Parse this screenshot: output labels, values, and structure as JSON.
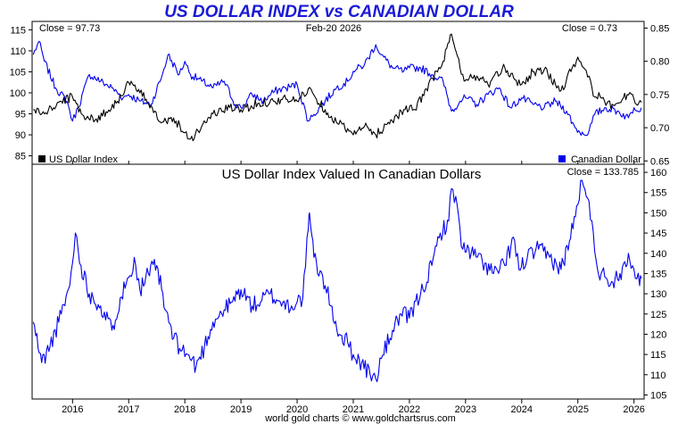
{
  "chart_data": [
    {
      "type": "line",
      "title": "US DOLLAR INDEX vs CANADIAN DOLLAR",
      "date_label": "Feb-20  2026",
      "legend": "bottom",
      "grid": false,
      "x_ticks": [
        "2016",
        "2017",
        "2018",
        "2019",
        "2020",
        "2021",
        "2022",
        "2023",
        "2024",
        "2025",
        "2026"
      ],
      "y_left_ticks": [
        85,
        90,
        95,
        100,
        105,
        110,
        115
      ],
      "y_left_lim": [
        83,
        117
      ],
      "y_right_ticks": [
        0.65,
        0.7,
        0.75,
        0.8,
        0.85
      ],
      "y_right_lim": [
        0.645,
        0.86
      ],
      "close_left": "Close = 97.73",
      "close_right": "Close = 0.73",
      "series": [
        {
          "name": "US Dollar Index",
          "color": "#000000",
          "axis": "left",
          "points": [
            [
              2015.3,
              96
            ],
            [
              2015.5,
              95
            ],
            [
              2015.8,
              98
            ],
            [
              2016.0,
              99
            ],
            [
              2016.2,
              94.5
            ],
            [
              2016.4,
              93.5
            ],
            [
              2016.6,
              95.5
            ],
            [
              2016.8,
              98
            ],
            [
              2017.0,
              102.5
            ],
            [
              2017.2,
              100
            ],
            [
              2017.4,
              97
            ],
            [
              2017.6,
              93
            ],
            [
              2017.8,
              94
            ],
            [
              2018.0,
              90.5
            ],
            [
              2018.1,
              89
            ],
            [
              2018.3,
              92
            ],
            [
              2018.5,
              95
            ],
            [
              2018.8,
              96.5
            ],
            [
              2019.0,
              96
            ],
            [
              2019.3,
              97.5
            ],
            [
              2019.6,
              98
            ],
            [
              2019.8,
              98.5
            ],
            [
              2020.0,
              98
            ],
            [
              2020.2,
              101
            ],
            [
              2020.3,
              99.5
            ],
            [
              2020.5,
              96
            ],
            [
              2020.7,
              93
            ],
            [
              2020.9,
              91.5
            ],
            [
              2021.0,
              90
            ],
            [
              2021.2,
              92
            ],
            [
              2021.4,
              90
            ],
            [
              2021.6,
              92.5
            ],
            [
              2021.9,
              96
            ],
            [
              2022.1,
              96
            ],
            [
              2022.3,
              101
            ],
            [
              2022.5,
              105
            ],
            [
              2022.6,
              107.5
            ],
            [
              2022.75,
              114
            ],
            [
              2022.9,
              106
            ],
            [
              2023.0,
              103
            ],
            [
              2023.2,
              104
            ],
            [
              2023.4,
              102
            ],
            [
              2023.7,
              106
            ],
            [
              2023.9,
              103
            ],
            [
              2024.0,
              102
            ],
            [
              2024.2,
              105
            ],
            [
              2024.4,
              105.5
            ],
            [
              2024.6,
              102
            ],
            [
              2024.7,
              100.5
            ],
            [
              2024.9,
              106
            ],
            [
              2025.0,
              108.5
            ],
            [
              2025.1,
              106
            ],
            [
              2025.2,
              104
            ],
            [
              2025.3,
              99
            ],
            [
              2025.4,
              99
            ],
            [
              2025.5,
              97
            ],
            [
              2025.7,
              97.5
            ],
            [
              2025.9,
              99.5
            ],
            [
              2026.0,
              98.5
            ],
            [
              2026.13,
              97.73
            ]
          ]
        },
        {
          "name": "Canadian Dollar",
          "color": "#0000ee",
          "axis": "right",
          "points": [
            [
              2015.3,
              0.81
            ],
            [
              2015.4,
              0.83
            ],
            [
              2015.5,
              0.8
            ],
            [
              2015.7,
              0.76
            ],
            [
              2015.9,
              0.74
            ],
            [
              2016.0,
              0.71
            ],
            [
              2016.1,
              0.73
            ],
            [
              2016.3,
              0.78
            ],
            [
              2016.5,
              0.77
            ],
            [
              2016.7,
              0.76
            ],
            [
              2016.9,
              0.745
            ],
            [
              2017.0,
              0.75
            ],
            [
              2017.2,
              0.74
            ],
            [
              2017.4,
              0.735
            ],
            [
              2017.6,
              0.78
            ],
            [
              2017.7,
              0.81
            ],
            [
              2017.9,
              0.78
            ],
            [
              2018.0,
              0.8
            ],
            [
              2018.1,
              0.78
            ],
            [
              2018.3,
              0.77
            ],
            [
              2018.5,
              0.76
            ],
            [
              2018.7,
              0.77
            ],
            [
              2018.9,
              0.735
            ],
            [
              2019.0,
              0.73
            ],
            [
              2019.2,
              0.75
            ],
            [
              2019.4,
              0.74
            ],
            [
              2019.6,
              0.755
            ],
            [
              2019.8,
              0.76
            ],
            [
              2020.0,
              0.765
            ],
            [
              2020.2,
              0.71
            ],
            [
              2020.3,
              0.72
            ],
            [
              2020.5,
              0.74
            ],
            [
              2020.7,
              0.76
            ],
            [
              2020.9,
              0.77
            ],
            [
              2021.0,
              0.785
            ],
            [
              2021.2,
              0.795
            ],
            [
              2021.4,
              0.825
            ],
            [
              2021.5,
              0.81
            ],
            [
              2021.7,
              0.79
            ],
            [
              2021.9,
              0.785
            ],
            [
              2022.0,
              0.79
            ],
            [
              2022.2,
              0.79
            ],
            [
              2022.4,
              0.78
            ],
            [
              2022.6,
              0.77
            ],
            [
              2022.75,
              0.725
            ],
            [
              2022.9,
              0.74
            ],
            [
              2023.0,
              0.745
            ],
            [
              2023.2,
              0.735
            ],
            [
              2023.4,
              0.75
            ],
            [
              2023.6,
              0.76
            ],
            [
              2023.8,
              0.73
            ],
            [
              2024.0,
              0.745
            ],
            [
              2024.2,
              0.735
            ],
            [
              2024.4,
              0.73
            ],
            [
              2024.6,
              0.74
            ],
            [
              2024.8,
              0.725
            ],
            [
              2024.95,
              0.7
            ],
            [
              2025.1,
              0.69
            ],
            [
              2025.2,
              0.695
            ],
            [
              2025.3,
              0.72
            ],
            [
              2025.5,
              0.73
            ],
            [
              2025.7,
              0.725
            ],
            [
              2025.9,
              0.715
            ],
            [
              2026.0,
              0.73
            ],
            [
              2026.13,
              0.73
            ]
          ]
        }
      ]
    },
    {
      "type": "line",
      "title": "US Dollar Index Valued In Canadian Dollars",
      "close_label": "Close = 133.785",
      "legend": "none",
      "grid": false,
      "x_ticks": [
        "2016",
        "2017",
        "2018",
        "2019",
        "2020",
        "2021",
        "2022",
        "2023",
        "2024",
        "2025",
        "2026"
      ],
      "y_ticks": [
        105,
        110,
        115,
        120,
        125,
        130,
        135,
        140,
        145,
        150,
        155,
        160
      ],
      "y_lim": [
        104,
        162
      ],
      "series": [
        {
          "name": "",
          "color": "#0000ee",
          "axis": "right",
          "points": [
            [
              2015.3,
              123
            ],
            [
              2015.45,
              113
            ],
            [
              2015.6,
              117
            ],
            [
              2015.8,
              125
            ],
            [
              2015.95,
              132
            ],
            [
              2016.05,
              145
            ],
            [
              2016.15,
              137
            ],
            [
              2016.3,
              130
            ],
            [
              2016.5,
              127
            ],
            [
              2016.7,
              121
            ],
            [
              2016.85,
              129
            ],
            [
              2017.0,
              134
            ],
            [
              2017.1,
              139
            ],
            [
              2017.2,
              131
            ],
            [
              2017.35,
              135
            ],
            [
              2017.5,
              137
            ],
            [
              2017.65,
              126
            ],
            [
              2017.8,
              119
            ],
            [
              2017.95,
              116
            ],
            [
              2018.05,
              115
            ],
            [
              2018.2,
              112
            ],
            [
              2018.35,
              117
            ],
            [
              2018.5,
              123
            ],
            [
              2018.7,
              126
            ],
            [
              2018.85,
              128
            ],
            [
              2019.0,
              131
            ],
            [
              2019.2,
              127
            ],
            [
              2019.35,
              128
            ],
            [
              2019.5,
              130
            ],
            [
              2019.7,
              128
            ],
            [
              2019.9,
              127
            ],
            [
              2020.0,
              128
            ],
            [
              2020.1,
              129
            ],
            [
              2020.2,
              146
            ],
            [
              2020.22,
              150
            ],
            [
              2020.3,
              139
            ],
            [
              2020.5,
              132
            ],
            [
              2020.6,
              127
            ],
            [
              2020.75,
              120
            ],
            [
              2020.9,
              118
            ],
            [
              2021.0,
              115
            ],
            [
              2021.15,
              113
            ],
            [
              2021.3,
              110
            ],
            [
              2021.4,
              109
            ],
            [
              2021.5,
              114
            ],
            [
              2021.7,
              121
            ],
            [
              2021.85,
              125
            ],
            [
              2022.0,
              124
            ],
            [
              2022.2,
              130
            ],
            [
              2022.4,
              137
            ],
            [
              2022.55,
              145
            ],
            [
              2022.7,
              148
            ],
            [
              2022.75,
              156
            ],
            [
              2022.85,
              152
            ],
            [
              2022.95,
              141
            ],
            [
              2023.1,
              140
            ],
            [
              2023.3,
              138
            ],
            [
              2023.5,
              135
            ],
            [
              2023.7,
              137
            ],
            [
              2023.85,
              144
            ],
            [
              2023.95,
              136
            ],
            [
              2024.1,
              139
            ],
            [
              2024.3,
              141
            ],
            [
              2024.5,
              139
            ],
            [
              2024.7,
              136
            ],
            [
              2024.85,
              143
            ],
            [
              2025.0,
              152
            ],
            [
              2025.05,
              158
            ],
            [
              2025.15,
              154
            ],
            [
              2025.25,
              148
            ],
            [
              2025.35,
              136
            ],
            [
              2025.5,
              134
            ],
            [
              2025.6,
              133
            ],
            [
              2025.75,
              135
            ],
            [
              2025.9,
              140
            ],
            [
              2026.0,
              136
            ],
            [
              2026.1,
              132
            ],
            [
              2026.13,
              133.785
            ]
          ]
        }
      ]
    }
  ],
  "footer": "world gold charts © www.goldchartsrus.com"
}
